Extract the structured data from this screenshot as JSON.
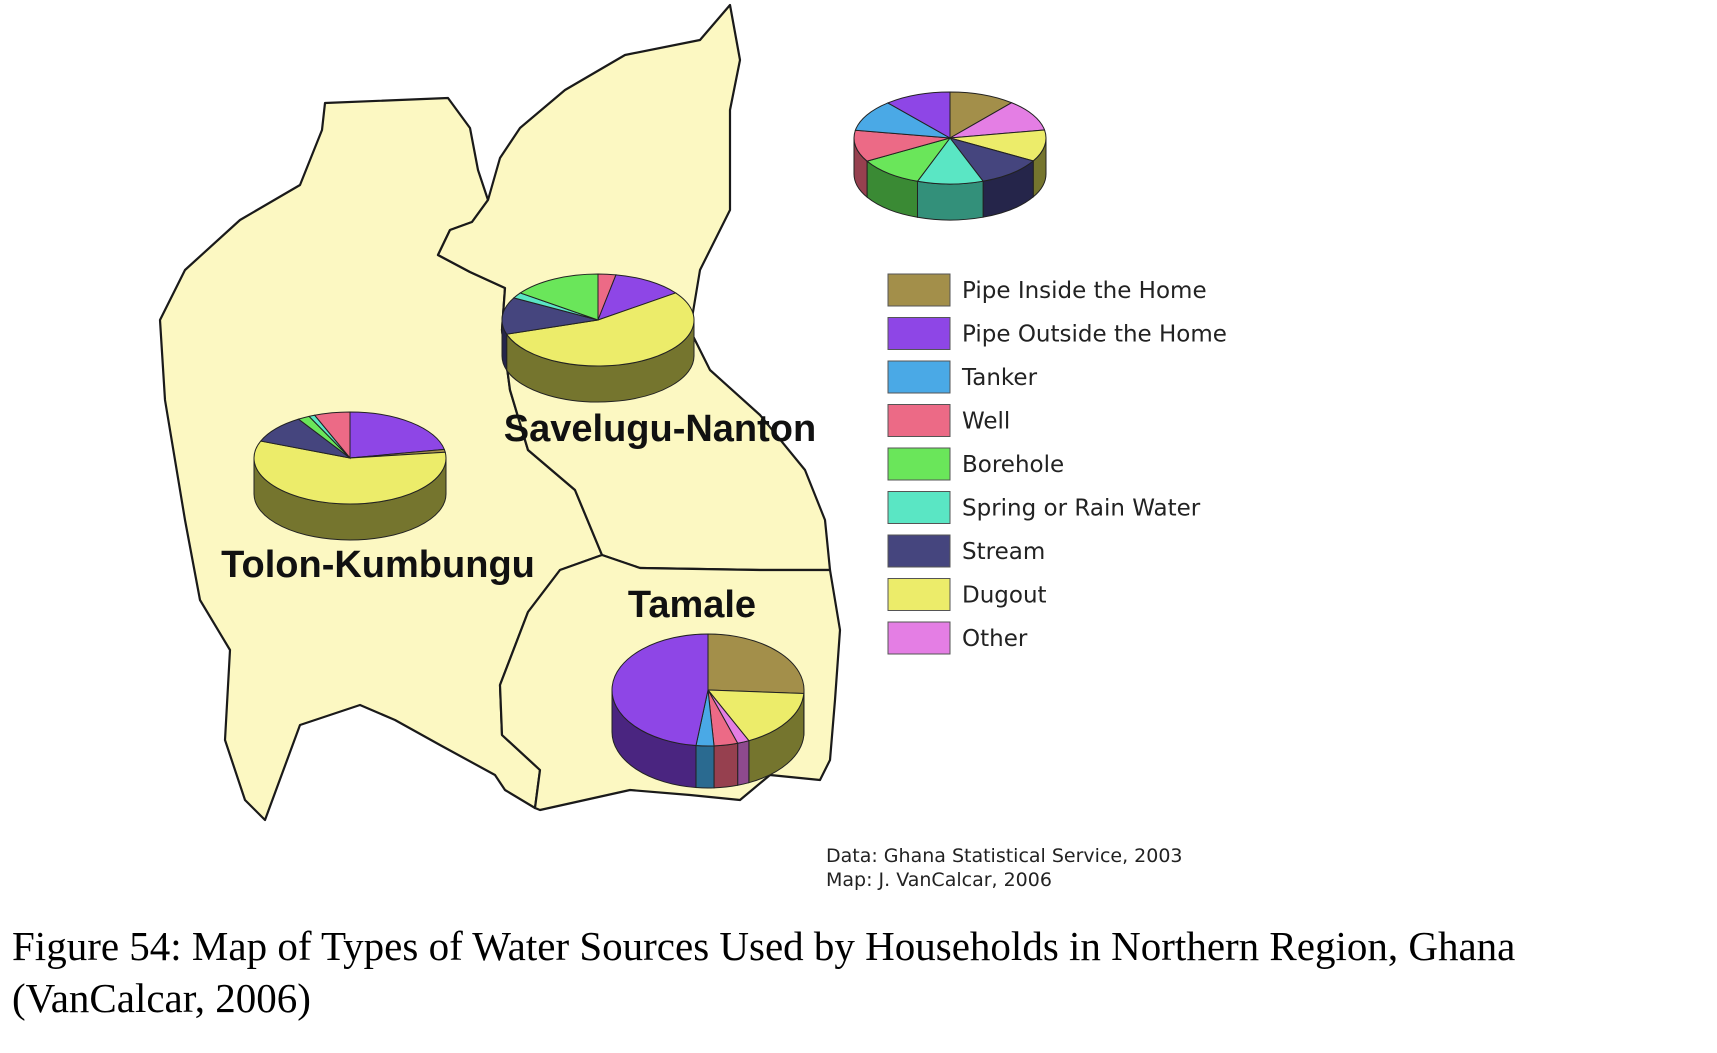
{
  "legend": [
    {
      "label": "Pipe Inside the Home",
      "color": "#a38f4a",
      "side": "#7a6a33"
    },
    {
      "label": "Pipe Outside the Home",
      "color": "#8e46e6",
      "side": "#4a2580"
    },
    {
      "label": "Tanker",
      "color": "#4aa9e6",
      "side": "#2a6a90"
    },
    {
      "label": "Well",
      "color": "#ec6a86",
      "side": "#96404f"
    },
    {
      "label": "Borehole",
      "color": "#6ae65a",
      "side": "#3a8a34"
    },
    {
      "label": "Spring or Rain Water",
      "color": "#5ae6c4",
      "side": "#33907a"
    },
    {
      "label": "Stream",
      "color": "#45457e",
      "side": "#25254a"
    },
    {
      "label": "Dugout",
      "color": "#ecec6a",
      "side": "#75752e"
    },
    {
      "label": "Other",
      "color": "#e47ee4",
      "side": "#8e4a8e"
    }
  ],
  "districts": {
    "tolon": "Tolon-Kumbungu",
    "savelugu": "Savelugu-Nanton",
    "tamale": "Tamale"
  },
  "pie_data": {
    "tolon": [
      {
        "source": "Pipe Outside the Home",
        "share": 0.22
      },
      {
        "source": "Pipe Inside the Home",
        "share": 0.01
      },
      {
        "source": "Dugout",
        "share": 0.58
      },
      {
        "source": "Stream",
        "share": 0.1
      },
      {
        "source": "Borehole",
        "share": 0.02
      },
      {
        "source": "Spring or Rain Water",
        "share": 0.01
      },
      {
        "source": "Well",
        "share": 0.06
      }
    ],
    "savelugu": [
      {
        "source": "Well",
        "share": 0.03
      },
      {
        "source": "Pipe Outside the Home",
        "share": 0.12
      },
      {
        "source": "Dugout",
        "share": 0.55
      },
      {
        "source": "Stream",
        "share": 0.13
      },
      {
        "source": "Spring or Rain Water",
        "share": 0.02
      },
      {
        "source": "Borehole",
        "share": 0.15
      }
    ],
    "tamale": [
      {
        "source": "Pipe Inside the Home",
        "share": 0.26
      },
      {
        "source": "Dugout",
        "share": 0.17
      },
      {
        "source": "Other",
        "share": 0.02
      },
      {
        "source": "Well",
        "share": 0.04
      },
      {
        "source": "Tanker",
        "share": 0.03
      },
      {
        "source": "Pipe Outside the Home",
        "share": 0.48
      }
    ],
    "legend_key": [
      {
        "source": "Pipe Inside the Home",
        "share": 0.111
      },
      {
        "source": "Other",
        "share": 0.111
      },
      {
        "source": "Dugout",
        "share": 0.111
      },
      {
        "source": "Stream",
        "share": 0.111
      },
      {
        "source": "Spring or Rain Water",
        "share": 0.111
      },
      {
        "source": "Borehole",
        "share": 0.111
      },
      {
        "source": "Well",
        "share": 0.111
      },
      {
        "source": "Tanker",
        "share": 0.111
      },
      {
        "source": "Pipe Outside the Home",
        "share": 0.112
      }
    ]
  },
  "source_note": {
    "data_line": "Data: Ghana Statistical Service, 2003",
    "map_line": "Map: J. VanCalcar, 2006"
  },
  "caption": {
    "line1": "Figure 54: Map of Types of Water Sources Used by Households in Northern Region, Ghana",
    "line2": "(VanCalcar, 2006)"
  }
}
